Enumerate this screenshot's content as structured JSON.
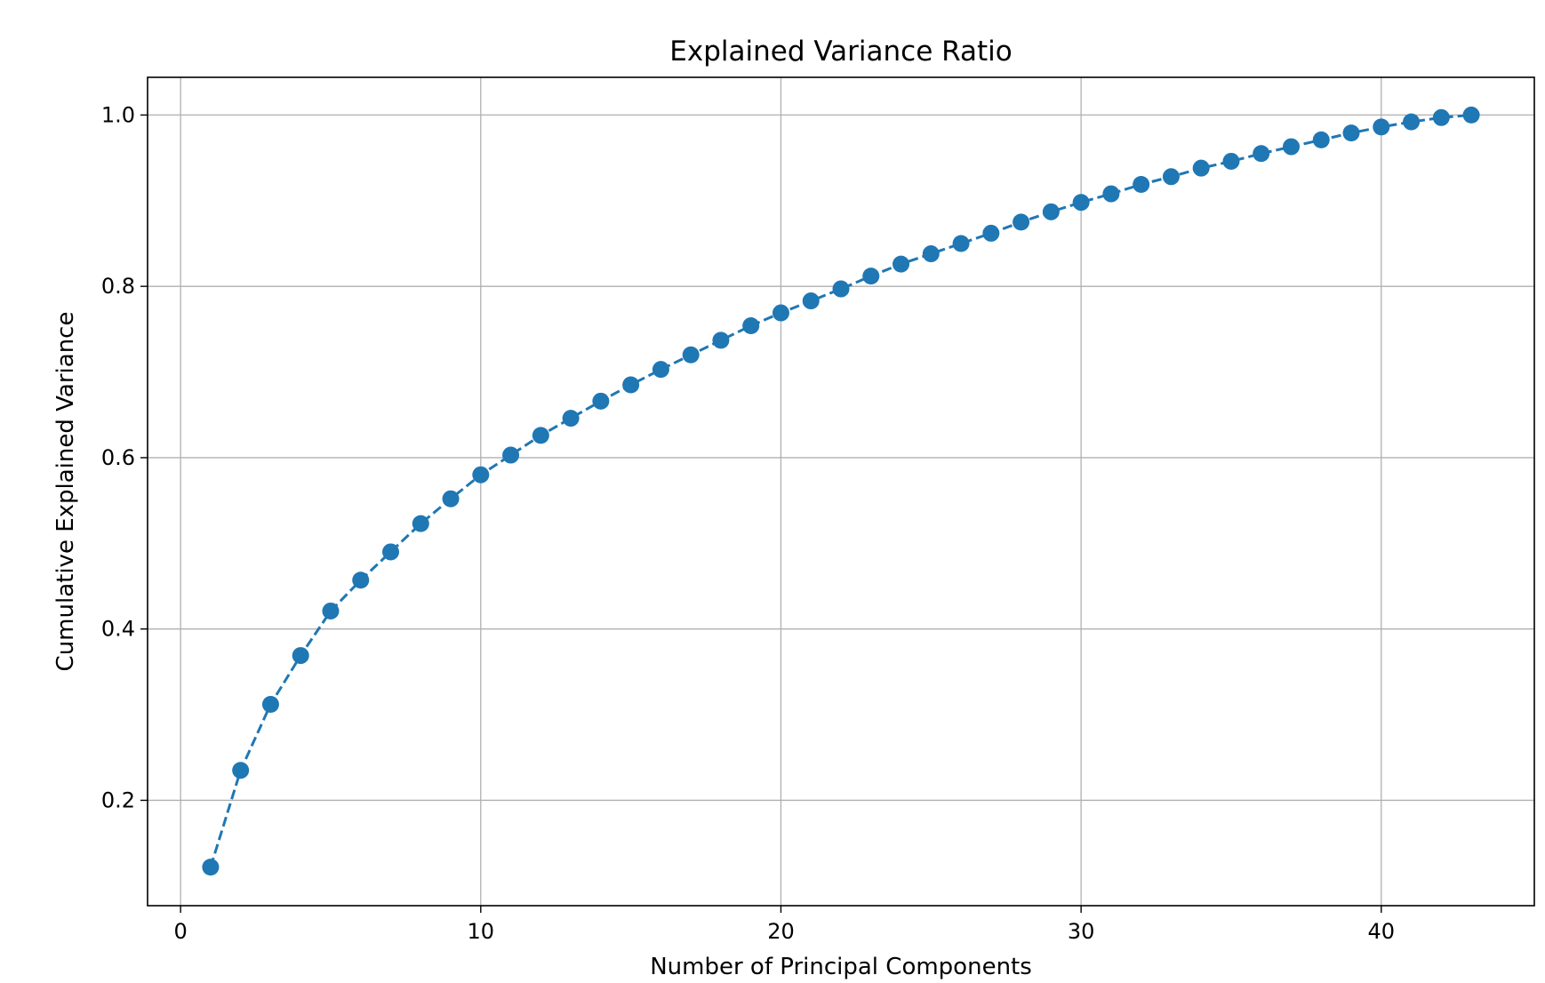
{
  "chart_data": {
    "type": "line",
    "title": "Explained Variance Ratio",
    "xlabel": "Number of Principal Components",
    "ylabel": "Cumulative Explained Variance",
    "xlim": [
      -1.1,
      45.1
    ],
    "ylim": [
      0.077,
      1.044
    ],
    "xticks": [
      0,
      10,
      20,
      30,
      40
    ],
    "xtick_labels": [
      "0",
      "10",
      "20",
      "30",
      "40"
    ],
    "yticks": [
      0.2,
      0.4,
      0.6,
      0.8,
      1.0
    ],
    "ytick_labels": [
      "0.2",
      "0.4",
      "0.6",
      "0.8",
      "1.0"
    ],
    "grid": true,
    "line_style": "dashed",
    "marker": "circle",
    "color": "#1f77b4",
    "x": [
      1,
      2,
      3,
      4,
      5,
      6,
      7,
      8,
      9,
      10,
      11,
      12,
      13,
      14,
      15,
      16,
      17,
      18,
      19,
      20,
      21,
      22,
      23,
      24,
      25,
      26,
      27,
      28,
      29,
      30,
      31,
      32,
      33,
      34,
      35,
      36,
      37,
      38,
      39,
      40,
      41,
      42,
      43
    ],
    "y": [
      0.122,
      0.235,
      0.312,
      0.369,
      0.421,
      0.457,
      0.49,
      0.523,
      0.552,
      0.58,
      0.603,
      0.626,
      0.646,
      0.666,
      0.685,
      0.703,
      0.72,
      0.737,
      0.754,
      0.769,
      0.783,
      0.797,
      0.812,
      0.826,
      0.838,
      0.85,
      0.862,
      0.875,
      0.887,
      0.898,
      0.908,
      0.919,
      0.928,
      0.938,
      0.946,
      0.955,
      0.963,
      0.971,
      0.979,
      0.986,
      0.992,
      0.997,
      1.0
    ]
  }
}
